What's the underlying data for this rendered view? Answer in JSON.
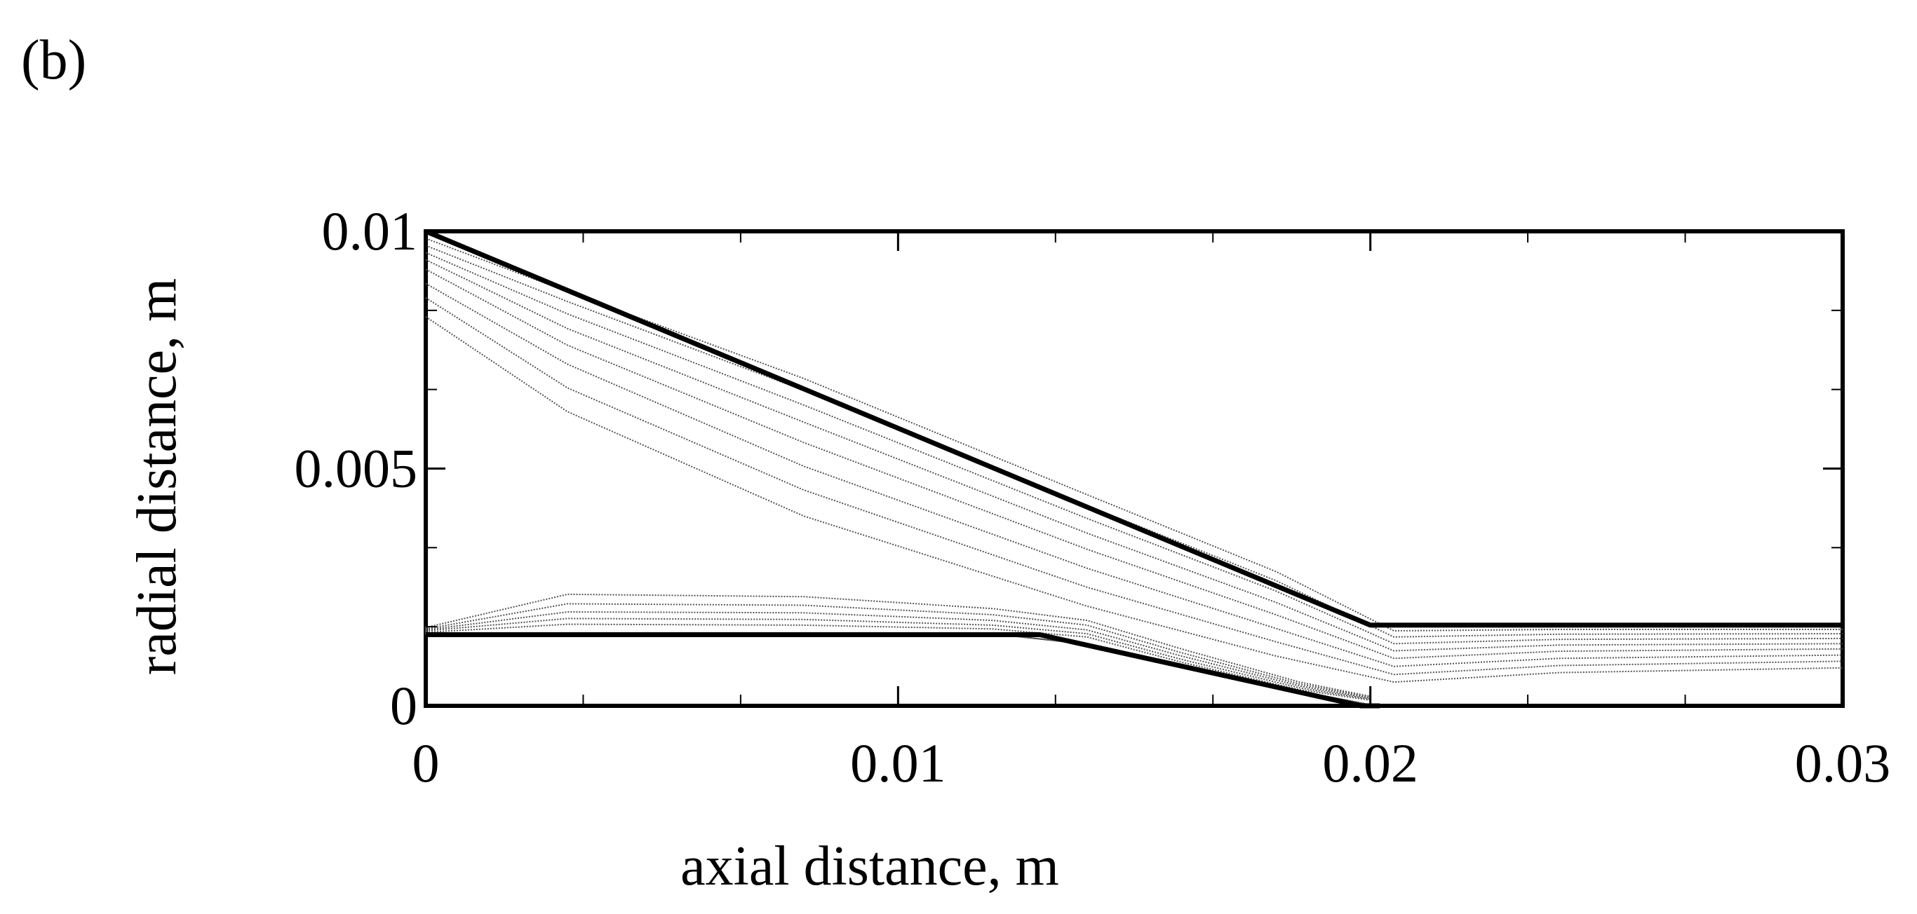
{
  "panel_label": "(b)",
  "chart_data": {
    "type": "line",
    "xlabel": "axial distance, m",
    "ylabel": "radial distance, m",
    "xlim": [
      0,
      0.03
    ],
    "ylim": [
      0,
      0.01
    ],
    "x_ticks": [
      {
        "value": 0,
        "label": "0"
      },
      {
        "value": 0.01,
        "label": "0.01"
      },
      {
        "value": 0.02,
        "label": "0.02"
      },
      {
        "value": 0.03,
        "label": "0.03"
      }
    ],
    "y_ticks": [
      {
        "value": 0,
        "label": "0"
      },
      {
        "value": 0.005,
        "label": "0.005"
      },
      {
        "value": 0.01,
        "label": "0.01"
      }
    ],
    "x_minor_step": 0.0033333,
    "y_minor_step": 0.0016667,
    "grid": false,
    "legend": "none",
    "geometry": {
      "outer_wall": {
        "x": [
          0,
          0.02,
          0.03
        ],
        "y": [
          0.01,
          0.0017,
          0.0017
        ]
      },
      "inner_wall": {
        "x": [
          0,
          0.013,
          0.0198,
          0.0202
        ],
        "y": [
          0.0015,
          0.0015,
          0,
          0
        ]
      }
    },
    "series_style": {
      "line_color": "#000000",
      "contour_color": "#555555"
    },
    "outer_streamlines": [
      {
        "x": [
          0,
          0.003,
          0.008,
          0.014,
          0.018,
          0.0205,
          0.024,
          0.03
        ],
        "y": [
          0.00985,
          0.00873,
          0.0069,
          0.00445,
          0.00283,
          0.00158,
          0.00161,
          0.00161
        ]
      },
      {
        "x": [
          0,
          0.003,
          0.008,
          0.014,
          0.018,
          0.0205,
          0.024,
          0.03
        ],
        "y": [
          0.0097,
          0.00852,
          0.00665,
          0.00422,
          0.00264,
          0.00145,
          0.00151,
          0.00152
        ]
      },
      {
        "x": [
          0,
          0.003,
          0.008,
          0.014,
          0.018,
          0.0205,
          0.024,
          0.03
        ],
        "y": [
          0.00955,
          0.00826,
          0.00634,
          0.00395,
          0.00242,
          0.00131,
          0.0014,
          0.00142
        ]
      },
      {
        "x": [
          0,
          0.003,
          0.008,
          0.014,
          0.018,
          0.0205,
          0.024,
          0.03
        ],
        "y": [
          0.0094,
          0.00795,
          0.00598,
          0.00364,
          0.00218,
          0.00116,
          0.00128,
          0.00131
        ]
      },
      {
        "x": [
          0,
          0.003,
          0.008,
          0.014,
          0.018,
          0.0205,
          0.024,
          0.03
        ],
        "y": [
          0.0092,
          0.0076,
          0.00555,
          0.0033,
          0.00192,
          0.001,
          0.00115,
          0.0012
        ]
      },
      {
        "x": [
          0,
          0.003,
          0.008,
          0.014,
          0.018,
          0.0205,
          0.024,
          0.03
        ],
        "y": [
          0.0089,
          0.0072,
          0.00505,
          0.0029,
          0.00163,
          0.00083,
          0.001,
          0.00107
        ]
      },
      {
        "x": [
          0,
          0.003,
          0.008,
          0.014,
          0.018,
          0.0205,
          0.024,
          0.03
        ],
        "y": [
          0.0086,
          0.0067,
          0.00455,
          0.0025,
          0.00135,
          0.00066,
          0.00085,
          0.00094
        ]
      },
      {
        "x": [
          0,
          0.003,
          0.008,
          0.014,
          0.018,
          0.0205,
          0.024,
          0.03
        ],
        "y": [
          0.0082,
          0.0062,
          0.004,
          0.0021,
          0.00105,
          0.0005,
          0.0007,
          0.0008
        ]
      }
    ],
    "recirculation_loops": [
      {
        "x": [
          0,
          0.003,
          0.008,
          0.012,
          0.014,
          0.016,
          0.0185,
          0.02
        ],
        "y_upper": [
          0.00165,
          0.00235,
          0.0023,
          0.00205,
          0.0018,
          0.0012,
          0.0005,
          0.0002
        ]
      },
      {
        "x": [
          0,
          0.003,
          0.008,
          0.012,
          0.014,
          0.016,
          0.0185,
          0.02
        ],
        "y_upper": [
          0.00162,
          0.00215,
          0.00212,
          0.00192,
          0.0017,
          0.00112,
          0.00046,
          0.00018
        ]
      },
      {
        "x": [
          0,
          0.003,
          0.008,
          0.012,
          0.014,
          0.016,
          0.0185,
          0.02
        ],
        "y_upper": [
          0.0016,
          0.00198,
          0.00196,
          0.0018,
          0.0016,
          0.00105,
          0.00042,
          0.00016
        ]
      },
      {
        "x": [
          0,
          0.003,
          0.008,
          0.012,
          0.014,
          0.016,
          0.0185,
          0.02
        ],
        "y_upper": [
          0.00158,
          0.00184,
          0.00182,
          0.0017,
          0.00152,
          0.00098,
          0.00038,
          0.00014
        ]
      },
      {
        "x": [
          0,
          0.003,
          0.008,
          0.012,
          0.014,
          0.016,
          0.0185,
          0.02
        ],
        "y_upper": [
          0.00155,
          0.00172,
          0.0017,
          0.00162,
          0.00145,
          0.00092,
          0.00034,
          0.00012
        ]
      }
    ]
  }
}
